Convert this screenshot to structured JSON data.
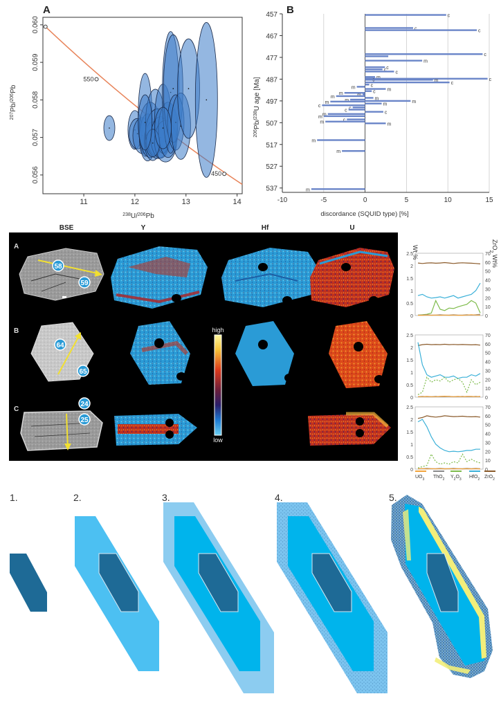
{
  "panelA": {
    "label": "A",
    "ylabel_pre": "207",
    "ylabel_mid": "Pb/",
    "ylabel_sup2": "206",
    "ylabel_post": "Pb",
    "xlabel_pre": "238",
    "xlabel_mid": "U/",
    "xlabel_sup2": "206",
    "xlabel_post": "Pb",
    "curve_labels": [
      "550",
      "450"
    ],
    "color_ellipse": "#3d7cc9",
    "color_curve": "#e8845a"
  },
  "panelB": {
    "label": "B",
    "ylabel_sup1": "206",
    "ylabel_mid": "Pb/",
    "ylabel_sup2": "238",
    "ylabel_post": "U age [Ma]",
    "xlabel": "discordance (SQUID type) [%]",
    "color_bar": "#6a85c8"
  },
  "chart_data": [
    {
      "type": "scatter",
      "title": "",
      "xlabel": "238U/206Pb",
      "ylabel": "207Pb/206Pb",
      "xlim": [
        10.2,
        14.1
      ],
      "ylim": [
        0.0555,
        0.0602
      ],
      "xticks": [
        11,
        12,
        13,
        14
      ],
      "yticks": [
        0.056,
        0.057,
        0.058,
        0.059,
        0.06
      ],
      "ytick_labels": [
        "0.056",
        "0.057",
        "0.058",
        "0.059",
        "0.060"
      ],
      "concordia_ticks": [
        {
          "label": "550",
          "x": 11.25,
          "y": 0.05855
        },
        {
          "label": "450",
          "x": 13.75,
          "y": 0.05603
        }
      ],
      "series": [
        {
          "x": [
            11.5,
            12.0,
            12.05,
            12.15,
            12.2,
            12.25,
            12.3,
            12.35,
            12.4,
            12.45,
            12.5,
            12.55,
            12.6,
            12.65,
            12.7,
            12.75,
            12.8,
            12.9,
            13.05,
            13.4,
            12.35,
            12.55,
            12.2
          ],
          "y": [
            0.05725,
            0.0572,
            0.0571,
            0.05705,
            0.0576,
            0.057,
            0.0572,
            0.0569,
            0.0574,
            0.0571,
            0.057,
            0.0575,
            0.0569,
            0.0572,
            0.0582,
            0.0583,
            0.0574,
            0.0573,
            0.0583,
            0.058,
            0.05685,
            0.05725,
            0.0574
          ]
        }
      ]
    },
    {
      "type": "bar",
      "title": "",
      "xlabel": "discordance (SQUID type) [%]",
      "ylabel": "206Pb/238U age [Ma]",
      "xlim": [
        -10,
        15
      ],
      "ylim": [
        457,
        539
      ],
      "xticks": [
        -10,
        -5,
        0,
        5,
        10,
        15
      ],
      "yticks": [
        457,
        467,
        477,
        487,
        497,
        507,
        517,
        527,
        537
      ],
      "bars": [
        {
          "y": 457.5,
          "x": 9.8,
          "label": "c"
        },
        {
          "y": 463.5,
          "x": 5.8,
          "label": "c"
        },
        {
          "y": 464.5,
          "x": 13.5,
          "label": "c"
        },
        {
          "y": 475.5,
          "x": 14.2,
          "label": "c"
        },
        {
          "y": 476.5,
          "x": 2.8,
          "label": ""
        },
        {
          "y": 478.5,
          "x": 6.9,
          "label": "m"
        },
        {
          "y": 481.5,
          "x": 2.4,
          "label": "c"
        },
        {
          "y": 482.5,
          "x": 2.1,
          "label": "c"
        },
        {
          "y": 483.5,
          "x": 3.5,
          "label": "c"
        },
        {
          "y": 486,
          "x": 1.2,
          "label": "m"
        },
        {
          "y": 486.8,
          "x": 14.8,
          "label": "c"
        },
        {
          "y": 487,
          "x": 0.7,
          "label": "c"
        },
        {
          "y": 487.3,
          "x": 8.2,
          "label": "m"
        },
        {
          "y": 488.5,
          "x": 10.2,
          "label": "c"
        },
        {
          "y": 489.5,
          "x": 0.5,
          "label": "c"
        },
        {
          "y": 490.5,
          "x": -1.0,
          "label": "m"
        },
        {
          "y": 491.5,
          "x": 2.5,
          "label": "m"
        },
        {
          "y": 492.5,
          "x": 0.8,
          "label": "c"
        },
        {
          "y": 493.3,
          "x": -2.5,
          "label": "m"
        },
        {
          "y": 494.0,
          "x": -0.3,
          "label": "m"
        },
        {
          "y": 494.8,
          "x": -3.5,
          "label": "m"
        },
        {
          "y": 495.6,
          "x": 1.0,
          "label": "m"
        },
        {
          "y": 496.4,
          "x": -1.8,
          "label": "m"
        },
        {
          "y": 497.0,
          "x": 5.5,
          "label": "m"
        },
        {
          "y": 497.3,
          "x": -4.2,
          "label": "m"
        },
        {
          "y": 498.2,
          "x": 2.0,
          "label": "m"
        },
        {
          "y": 499.0,
          "x": -5.2,
          "label": "c"
        },
        {
          "y": 500.0,
          "x": -1.5,
          "label": "c"
        },
        {
          "y": 501.0,
          "x": -2.0,
          "label": "c"
        },
        {
          "y": 502.0,
          "x": 2.2,
          "label": "c"
        },
        {
          "y": 503.0,
          "x": -4.5,
          "label": "m"
        },
        {
          "y": 504.0,
          "x": -5.0,
          "label": "m"
        },
        {
          "y": 505.5,
          "x": -2.2,
          "label": "c"
        },
        {
          "y": 506.5,
          "x": -4.8,
          "label": "m"
        },
        {
          "y": 507.3,
          "x": 2.5,
          "label": "m"
        },
        {
          "y": 515.0,
          "x": -5.8,
          "label": "m"
        },
        {
          "y": 520.0,
          "x": -2.8,
          "label": "m"
        },
        {
          "y": 537.5,
          "x": -6.5,
          "label": "m"
        }
      ]
    }
  ],
  "em": {
    "headers": [
      "BSE",
      "Y",
      "Hf",
      "U"
    ],
    "rows": [
      {
        "label": "A",
        "spots": [
          "58",
          "59"
        ]
      },
      {
        "label": "B",
        "spots": [
          "64",
          "65"
        ]
      },
      {
        "label": "C",
        "spots": [
          "24",
          "25"
        ]
      }
    ],
    "colorbar_high": "high",
    "colorbar_low": "low",
    "right_axis_left": "Wt %",
    "right_axis_right_pre": "ZrO",
    "right_axis_right_sub": "2",
    "right_axis_right_post": " Wt%",
    "left_ticks": [
      "2.5",
      "2",
      "1.5",
      "1",
      "0.5",
      "0"
    ],
    "right_ticks": [
      "70",
      "60",
      "50",
      "40",
      "30",
      "20",
      "10",
      "0"
    ],
    "legend": [
      {
        "pre": "UO",
        "sub": "3",
        "color": "#f2a33a"
      },
      {
        "pre": "ThO",
        "sub": "2",
        "color": "#8a8a8a"
      },
      {
        "pre": "Y",
        "sub": "2",
        "mid": "O",
        "sub2": "3",
        "color": "#7dbb4a"
      },
      {
        "pre": "HfO",
        "sub": "2",
        "color": "#3ab0d8"
      },
      {
        "pre": "ZrO",
        "sub": "2",
        "color": "#8a5a2a"
      }
    ],
    "line_data": [
      {
        "zro2": [
          59,
          58.5,
          59,
          59.2,
          58.8,
          59,
          59.5,
          59,
          58.5,
          59,
          59.3,
          59,
          58.8,
          58.5,
          58
        ],
        "hfo2": [
          0.8,
          0.85,
          0.75,
          0.7,
          0.72,
          0.75,
          0.7,
          0.75,
          0.8,
          0.7,
          0.75,
          0.8,
          0.85,
          1.0,
          1.3
        ],
        "y2o3": [
          0.02,
          0.03,
          0.05,
          0.1,
          0.6,
          0.25,
          0.2,
          0.3,
          0.28,
          0.35,
          0.4,
          0.45,
          0.6,
          0.5,
          0.1
        ],
        "tho2": [
          0.02,
          0.02,
          0.03,
          0.02,
          0.02,
          0.03,
          0.02,
          0.02,
          0.03,
          0.02,
          0.02,
          0.03,
          0.02,
          0.03,
          0.05
        ],
        "uo3": [
          0.01,
          0.01,
          0.02,
          0.01,
          0.02,
          0.01,
          0.02,
          0.01,
          0.02,
          0.01,
          0.01,
          0.02,
          0.03,
          0.02,
          0.02
        ]
      },
      {
        "zro2": [
          58,
          59,
          59.5,
          59,
          59.2,
          59,
          59.5,
          59,
          59.3,
          59,
          59.2,
          59,
          58.8,
          59,
          58.5
        ],
        "hfo2": [
          2.2,
          1.3,
          0.9,
          0.8,
          0.85,
          0.9,
          0.8,
          0.8,
          0.85,
          0.75,
          0.8,
          0.8,
          0.9,
          0.85,
          0.95
        ],
        "y2o3": [
          0.1,
          0.2,
          0.8,
          0.6,
          0.7,
          0.65,
          0.8,
          0.6,
          0.7,
          0.75,
          0.6,
          0.2,
          0.7,
          0.5,
          0.6
        ],
        "tho2": [
          0.02,
          0.03,
          0.02,
          0.02,
          0.03,
          0.02,
          0.02,
          0.03,
          0.02,
          0.02,
          0.03,
          0.02,
          0.02,
          0.03,
          0.02
        ],
        "uo3": [
          0.02,
          0.02,
          0.03,
          0.02,
          0.02,
          0.03,
          0.04,
          0.03,
          0.02,
          0.03,
          0.02,
          0.03,
          0.03,
          0.02,
          0.03
        ]
      },
      {
        "zro2": [
          57,
          58,
          60,
          59,
          58.5,
          59,
          60,
          59.5,
          59,
          59.2,
          59.5,
          59,
          58.8,
          59,
          58.5
        ],
        "hfo2": [
          1.9,
          2.0,
          1.7,
          1.3,
          1.0,
          0.85,
          0.75,
          0.7,
          0.72,
          0.7,
          0.72,
          0.75,
          0.75,
          0.8,
          0.8
        ],
        "y2o3": [
          0.05,
          0.1,
          0.15,
          0.6,
          0.3,
          0.2,
          0.25,
          0.2,
          0.3,
          0.25,
          0.6,
          0.3,
          0.4,
          0.3,
          0.25
        ],
        "tho2": [
          0.02,
          0.02,
          0.03,
          0.02,
          0.02,
          0.03,
          0.02,
          0.02,
          0.03,
          0.02,
          0.02,
          0.03,
          0.02,
          0.03,
          0.02
        ],
        "uo3": [
          0.01,
          0.02,
          0.01,
          0.02,
          0.01,
          0.02,
          0.01,
          0.02,
          0.01,
          0.02,
          0.01,
          0.02,
          0.01,
          0.02,
          0.01
        ]
      }
    ]
  },
  "stages": {
    "labels": [
      "1.",
      "2.",
      "3.",
      "4.",
      "5."
    ]
  }
}
